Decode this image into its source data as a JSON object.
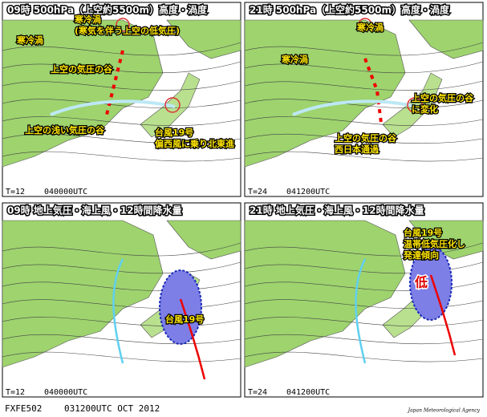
{
  "panels": [
    {
      "title": "09時 500hPa（上空約5500m）高度・渦度",
      "kind": "upper",
      "annotations": [
        {
          "lines": [
            "寒冷渦"
          ]
        },
        {
          "lines": [
            "寒冷渦",
            "(寒気を伴う上空の低気圧)"
          ]
        },
        {
          "lines": [
            "上空の気圧の谷"
          ]
        },
        {
          "lines": [
            "上空の浅い気圧の谷"
          ]
        },
        {
          "lines": [
            "台風19号",
            "偏西風に乗り北東進"
          ]
        }
      ],
      "step": "T=12",
      "time": "040000UTC"
    },
    {
      "title": "21時 500hPa（上空約5500m）高度・渦度",
      "kind": "upper",
      "annotations": [
        {
          "lines": [
            "寒冷渦"
          ]
        },
        {
          "lines": [
            "寒冷渦"
          ]
        },
        {
          "lines": [
            "上空の気圧の谷",
            "に変化"
          ]
        },
        {
          "lines": [
            "上空の気圧の谷",
            "西日本通過"
          ]
        }
      ],
      "step": "T=24",
      "time": "041200UTC"
    },
    {
      "title": "09時 地上気圧・海上風・12時間降水量",
      "kind": "surface",
      "annotations": [
        {
          "lines": [
            "台風19号"
          ]
        }
      ],
      "step": "T=12",
      "time": "040000UTC"
    },
    {
      "title": "21時 地上気圧・海上風・12時間降水量",
      "kind": "surface",
      "annotations": [
        {
          "lines": [
            "台風19号",
            "温帯低気圧化し",
            "発達傾向"
          ]
        },
        {
          "lines": [
            "低"
          ],
          "style": "low"
        }
      ],
      "step": "T=24",
      "time": "041200UTC"
    }
  ],
  "footer": {
    "code": "FXFE502",
    "date": "031200UTC OCT 2012",
    "agency": "Japan Meteorological Agency"
  }
}
